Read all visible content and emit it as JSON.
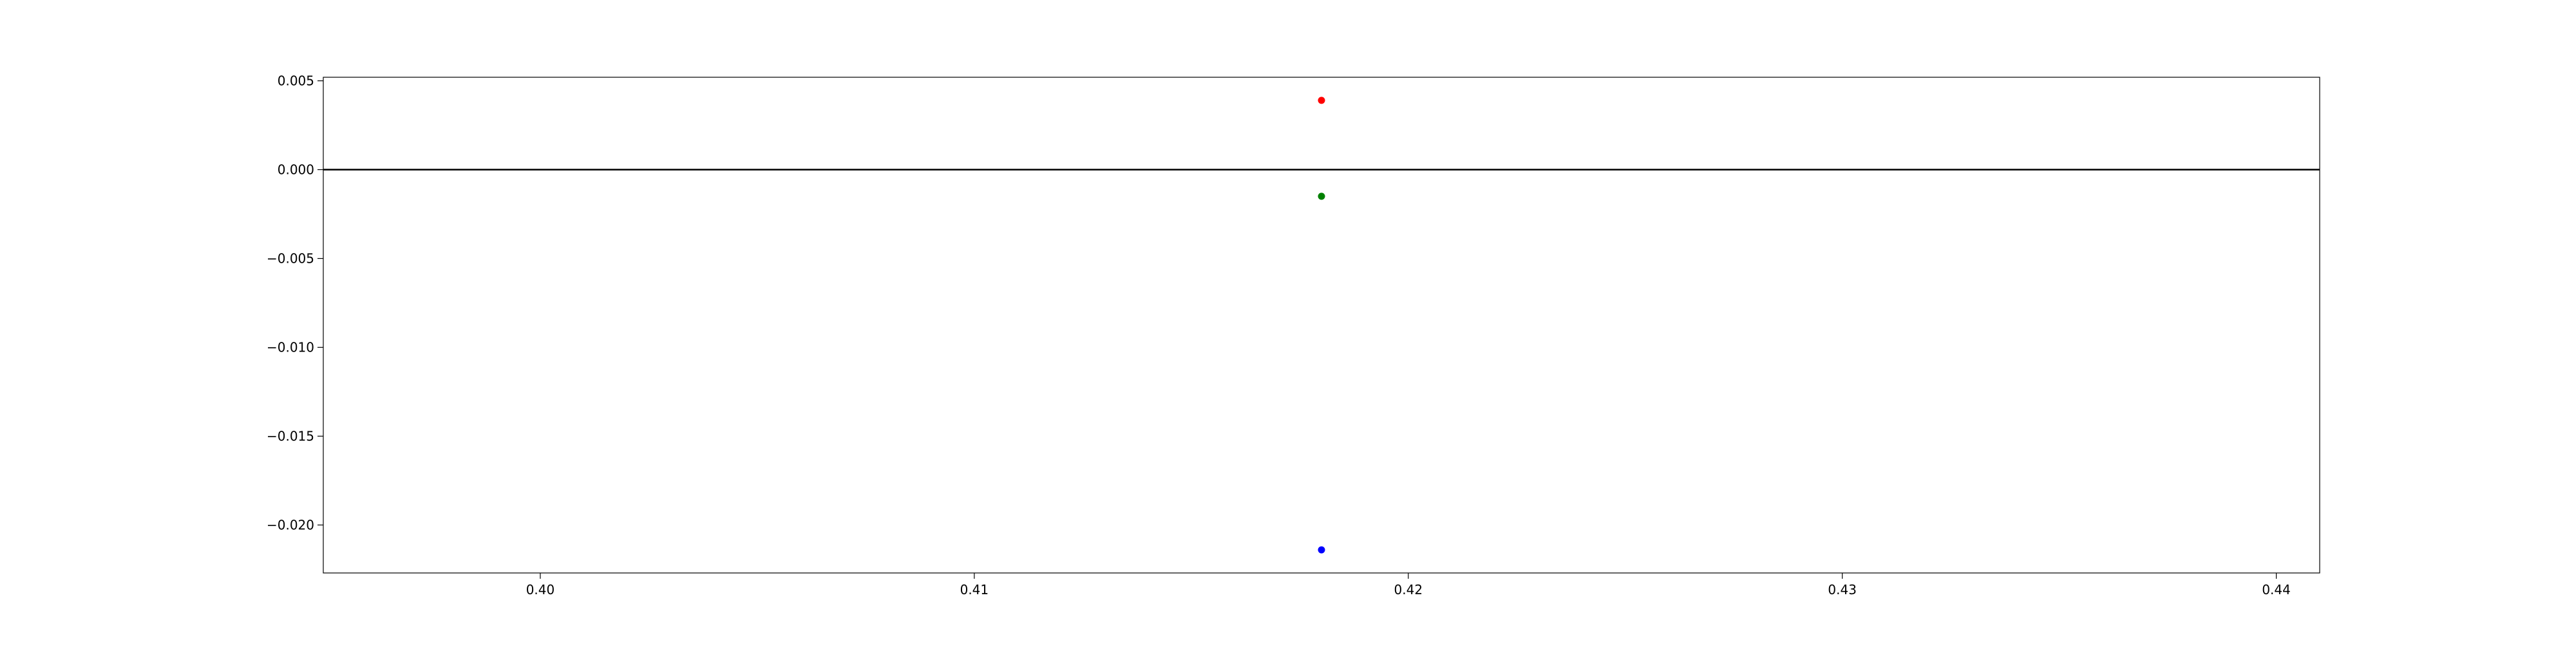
{
  "chart_data": {
    "type": "scatter",
    "title": "",
    "xlabel": "",
    "ylabel": "",
    "xlim": [
      0.395,
      0.441
    ],
    "ylim": [
      -0.0227,
      0.0052
    ],
    "grid": false,
    "legend": "none",
    "x_ticks": [
      0.4,
      0.41,
      0.42,
      0.43,
      0.44
    ],
    "x_tick_labels": [
      "0.40",
      "0.41",
      "0.42",
      "0.43",
      "0.44"
    ],
    "y_ticks": [
      0.005,
      0.0,
      -0.005,
      -0.01,
      -0.015,
      -0.02
    ],
    "y_tick_labels": [
      "0.005",
      "0.000",
      "−0.005",
      "−0.010",
      "−0.015",
      "−0.020"
    ],
    "reference_line": {
      "y": 0.0,
      "color": "#000000"
    },
    "series": [
      {
        "color": "#ff0000",
        "points": [
          {
            "x": 0.418,
            "y": 0.0039
          }
        ]
      },
      {
        "color": "#008000",
        "points": [
          {
            "x": 0.418,
            "y": -0.0015
          }
        ]
      },
      {
        "color": "#0000ff",
        "points": [
          {
            "x": 0.418,
            "y": -0.0214
          }
        ]
      }
    ]
  }
}
